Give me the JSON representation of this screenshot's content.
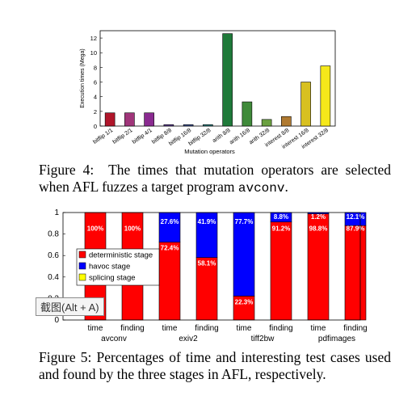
{
  "figure4": {
    "caption_label": "Figure 4:",
    "caption_text": "The times that mutation operators are selected when AFL fuzzes a target program",
    "caption_code": "avconv",
    "caption_end": "."
  },
  "figure5": {
    "caption": "Figure 5: Percentages of time and interesting test cases used and found by the three stages in AFL, respectively."
  },
  "tooltip": {
    "label": "截图(Alt + A)"
  },
  "chart_data": [
    {
      "type": "bar",
      "ylabel": "Execution times (Mega)",
      "xlabel": "Mutation operators",
      "ylim": [
        0,
        13
      ],
      "yticks": [
        0,
        2,
        4,
        6,
        8,
        10,
        12
      ],
      "grid": false,
      "categories": [
        "bitflip 1/1",
        "bitflip 2/1",
        "bitflip 4/1",
        "bitflip 8/8",
        "bitflip 16/8",
        "bitflip 32/8",
        "arith 8/8",
        "arith 16/8",
        "arith 32/8",
        "interest 8/8",
        "interest 16/8",
        "interest 32/8"
      ],
      "values": [
        1.8,
        1.8,
        1.8,
        0.2,
        0.2,
        0.2,
        12.6,
        3.3,
        0.9,
        1.3,
        6.0,
        8.2
      ],
      "colors": [
        "#b0152a",
        "#a0357a",
        "#8a2a90",
        "#5a3b90",
        "#3c5090",
        "#2a7a7a",
        "#1f7a3a",
        "#3f8a3a",
        "#6aa040",
        "#b07a30",
        "#d8c020",
        "#f5e81a"
      ]
    },
    {
      "type": "bar",
      "stacked": true,
      "ylim": [
        0,
        1
      ],
      "yticks": [
        "0",
        "0.2",
        "0.4",
        "0.6",
        "0.8",
        "1"
      ],
      "grid": false,
      "legend_position": "left",
      "categories": [
        "time",
        "finding",
        "time",
        "finding",
        "time",
        "finding",
        "time",
        "finding"
      ],
      "groups": [
        "avconv",
        "exiv2",
        "tiff2bw",
        "pdfimages"
      ],
      "series": [
        {
          "name": "deterministic stage",
          "color": "#ff0000",
          "values": [
            1.0,
            1.0,
            0.724,
            0.581,
            0.223,
            0.912,
            0.988,
            0.879
          ],
          "labels": [
            "100%",
            "100%",
            "72.4%",
            "58.1%",
            "22.3%",
            "91.2%",
            "98.8%",
            "87.9%"
          ]
        },
        {
          "name": "havoc stage",
          "color": "#0000ff",
          "values": [
            0,
            0,
            0.276,
            0.419,
            0.777,
            0.088,
            0.012,
            0.121
          ],
          "labels": [
            "",
            "",
            "27.6%",
            "41.9%",
            "77.7%",
            "8.8%",
            "1.2%",
            "12.1%"
          ]
        },
        {
          "name": "splicing stage",
          "color": "#ffff00",
          "values": [
            0,
            0,
            0,
            0,
            0,
            0,
            0,
            0
          ],
          "labels": [
            "",
            "",
            "",
            "",
            "",
            "",
            "",
            ""
          ]
        }
      ]
    }
  ]
}
